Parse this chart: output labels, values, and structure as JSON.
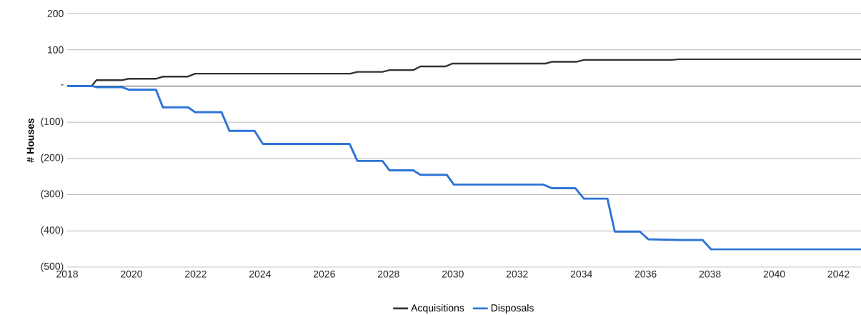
{
  "chart_data": {
    "type": "line",
    "ylabel": "# Houses",
    "xlim": [
      2018,
      2042.7
    ],
    "ylim": [
      -500,
      200
    ],
    "xticks": [
      2018,
      2020,
      2022,
      2024,
      2026,
      2028,
      2030,
      2032,
      2034,
      2036,
      2038,
      2040,
      2042
    ],
    "yticks": [
      {
        "value": 200,
        "label": "200"
      },
      {
        "value": 100,
        "label": "100"
      },
      {
        "value": 0,
        "label": "-"
      },
      {
        "value": -100,
        "label": "(100)"
      },
      {
        "value": -200,
        "label": "(200)"
      },
      {
        "value": -300,
        "label": "(300)"
      },
      {
        "value": -400,
        "label": "(400)"
      },
      {
        "value": -500,
        "label": "(500)"
      }
    ],
    "grid": "y",
    "legend": "bottom",
    "marker": "none",
    "line_style": "solid",
    "series": [
      {
        "name": "Acquisitions",
        "color": "#333333",
        "x": [
          2018,
          2018.76,
          2018.91,
          2019.69,
          2019.91,
          2020.76,
          2020.98,
          2021.76,
          2021.98,
          2026.81,
          2027.03,
          2027.81,
          2028.03,
          2028.77,
          2028.99,
          2029.77,
          2029.99,
          2032.88,
          2033.1,
          2033.86,
          2034.08,
          2036.82,
          2037.04,
          2042.7
        ],
        "values": [
          0,
          0,
          16,
          16,
          20,
          20,
          26,
          26,
          34,
          34,
          39,
          39,
          44,
          44,
          54,
          54,
          62,
          62,
          67,
          67,
          72,
          72,
          74,
          74
        ]
      },
      {
        "name": "Disposals",
        "color": "#2e75d6",
        "x": [
          2018,
          2018.76,
          2018.91,
          2019.69,
          2019.91,
          2020.76,
          2020.98,
          2021.76,
          2021.98,
          2022.8,
          2023.05,
          2023.83,
          2024.09,
          2026.79,
          2027.03,
          2027.81,
          2028.03,
          2028.77,
          2028.99,
          2029.81,
          2030.03,
          2032.81,
          2033.08,
          2033.81,
          2034.08,
          2034.81,
          2035.04,
          2035.82,
          2036.08,
          2037.11,
          2037.77,
          2038.04,
          2042.7
        ],
        "values": [
          0,
          0,
          -3,
          -3,
          -10,
          -10,
          -59,
          -59,
          -72,
          -72,
          -124,
          -124,
          -160,
          -160,
          -207,
          -207,
          -233,
          -233,
          -245,
          -245,
          -272,
          -272,
          -282,
          -282,
          -311,
          -311,
          -402,
          -402,
          -423,
          -425,
          -425,
          -451,
          -451
        ]
      }
    ]
  }
}
